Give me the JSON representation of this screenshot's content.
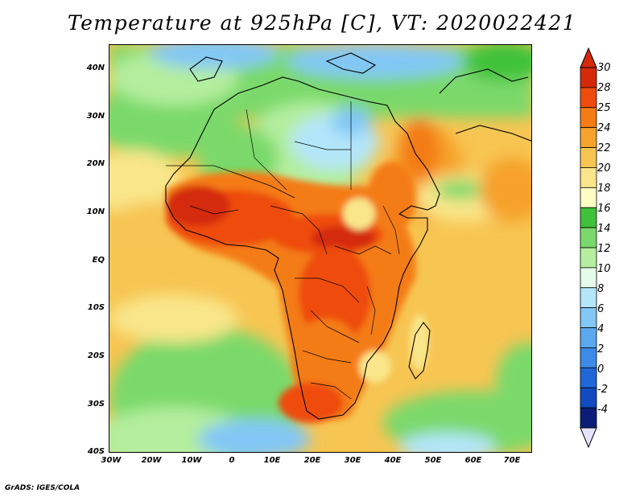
{
  "title": "Temperature at 925hPa [C], VT: 2020022421",
  "credit": "GrADS: IGES/COLA",
  "map": {
    "lat_labels": [
      "40N",
      "30N",
      "20N",
      "10N",
      "EQ",
      "10S",
      "20S",
      "30S",
      "40S"
    ],
    "lon_labels": [
      "30W",
      "20W",
      "10W",
      "0",
      "10E",
      "20E",
      "30E",
      "40E",
      "50E",
      "60E",
      "70E"
    ],
    "lat_range": [
      -40,
      45
    ],
    "lon_range": [
      -30,
      75
    ]
  },
  "colorbar": {
    "labels": [
      "30",
      "28",
      "25",
      "24",
      "22",
      "20",
      "18",
      "16",
      "14",
      "12",
      "10",
      "8",
      "6",
      "4",
      "2",
      "0",
      "-2",
      "-4"
    ],
    "colors": [
      "#d42a0a",
      "#ee4c0e",
      "#f47c16",
      "#f6a22c",
      "#f7c552",
      "#f9e68a",
      "#fffcc4",
      "#3fc23a",
      "#7ad96a",
      "#b4ee9e",
      "#e3fbe8",
      "#b4e6fa",
      "#82c7f5",
      "#5aa8ee",
      "#3c8be6",
      "#2068d8",
      "#124bc0",
      "#0a1e78"
    ]
  },
  "legend": {
    "over_color": "#d42a0a",
    "under_color": "#e6e2fa"
  }
}
